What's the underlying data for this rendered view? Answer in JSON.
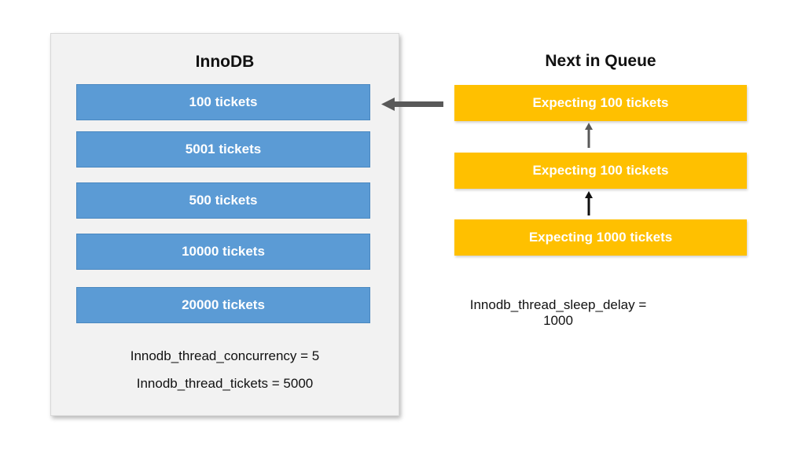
{
  "innodb": {
    "title": "InnoDB",
    "slots": [
      "100 tickets",
      "5001 tickets",
      "500 tickets",
      "10000 tickets",
      "20000 tickets"
    ],
    "settings": [
      "Innodb_thread_concurrency = 5",
      "Innodb_thread_tickets = 5000"
    ]
  },
  "queue": {
    "title": "Next in Queue",
    "items": [
      "Expecting 100 tickets",
      "Expecting 100 tickets",
      "Expecting 1000 tickets"
    ],
    "setting": "Innodb_thread_sleep_delay = 1000"
  },
  "colors": {
    "slot_fill": "#5b9bd5",
    "queue_fill": "#ffc000",
    "panel_fill": "#f2f2f2",
    "arrow": "#595959"
  }
}
